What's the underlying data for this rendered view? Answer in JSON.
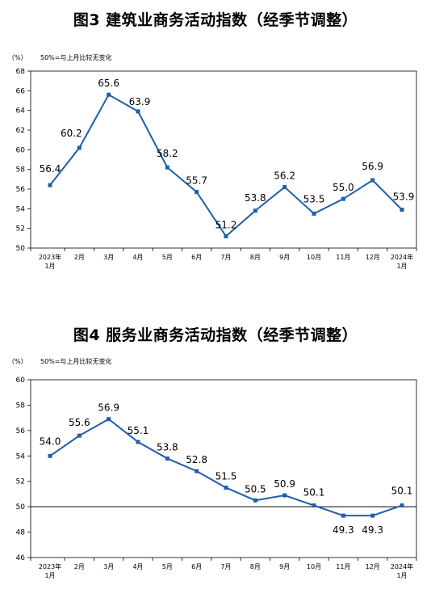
{
  "chart_data": [
    {
      "type": "line",
      "title": "图3  建筑业商务活动指数（经季节调整）",
      "unit_label": "（%）",
      "note": "50%=与上月比较无变化",
      "categories": [
        "2023年 1月",
        "2月",
        "3月",
        "4月",
        "5月",
        "6月",
        "7月",
        "8月",
        "9月",
        "10月",
        "11月",
        "12月",
        "2024年 1月"
      ],
      "category_lines": [
        [
          "2023年",
          "1月"
        ],
        [
          "2月"
        ],
        [
          "3月"
        ],
        [
          "4月"
        ],
        [
          "5月"
        ],
        [
          "6月"
        ],
        [
          "7月"
        ],
        [
          "8月"
        ],
        [
          "9月"
        ],
        [
          "10月"
        ],
        [
          "11月"
        ],
        [
          "12月"
        ],
        [
          "2024年",
          "1月"
        ]
      ],
      "values": [
        56.4,
        60.2,
        65.6,
        63.9,
        58.2,
        55.7,
        51.2,
        53.8,
        56.2,
        53.5,
        55.0,
        56.9,
        53.9
      ],
      "value_labels": [
        "56.4",
        "60.2",
        "65.6",
        "63.9",
        "58.2",
        "55.7",
        "51.2",
        "53.8",
        "56.2",
        "53.5",
        "55.0",
        "56.9",
        "53.9"
      ],
      "ylim": [
        50,
        68
      ],
      "yticks": [
        "50",
        "52",
        "54",
        "56",
        "58",
        "60",
        "62",
        "64",
        "66",
        "68"
      ],
      "reference_line": null,
      "grid": false,
      "series_color": "#1f5fa8"
    },
    {
      "type": "line",
      "title": "图4  服务业商务活动指数（经季节调整）",
      "unit_label": "（%）",
      "note": "50%=与上月比较无变化",
      "categories": [
        "2023年 1月",
        "2月",
        "3月",
        "4月",
        "5月",
        "6月",
        "7月",
        "8月",
        "9月",
        "10月",
        "11月",
        "12月",
        "2024年 1月"
      ],
      "category_lines": [
        [
          "2023年",
          "1月"
        ],
        [
          "2月"
        ],
        [
          "3月"
        ],
        [
          "4月"
        ],
        [
          "5月"
        ],
        [
          "6月"
        ],
        [
          "7月"
        ],
        [
          "8月"
        ],
        [
          "9月"
        ],
        [
          "10月"
        ],
        [
          "11月"
        ],
        [
          "12月"
        ],
        [
          "2024年",
          "1月"
        ]
      ],
      "values": [
        54.0,
        55.6,
        56.9,
        55.1,
        53.8,
        52.8,
        51.5,
        50.5,
        50.9,
        50.1,
        49.3,
        49.3,
        50.1
      ],
      "value_labels": [
        "54.0",
        "55.6",
        "56.9",
        "55.1",
        "53.8",
        "52.8",
        "51.5",
        "50.5",
        "50.9",
        "50.1",
        "49.3",
        "49.3",
        "50.1"
      ],
      "ylim": [
        46,
        60
      ],
      "yticks": [
        "46",
        "48",
        "50",
        "52",
        "54",
        "56",
        "58",
        "60"
      ],
      "reference_line": 50,
      "grid": false,
      "series_color": "#1f5fa8"
    }
  ]
}
